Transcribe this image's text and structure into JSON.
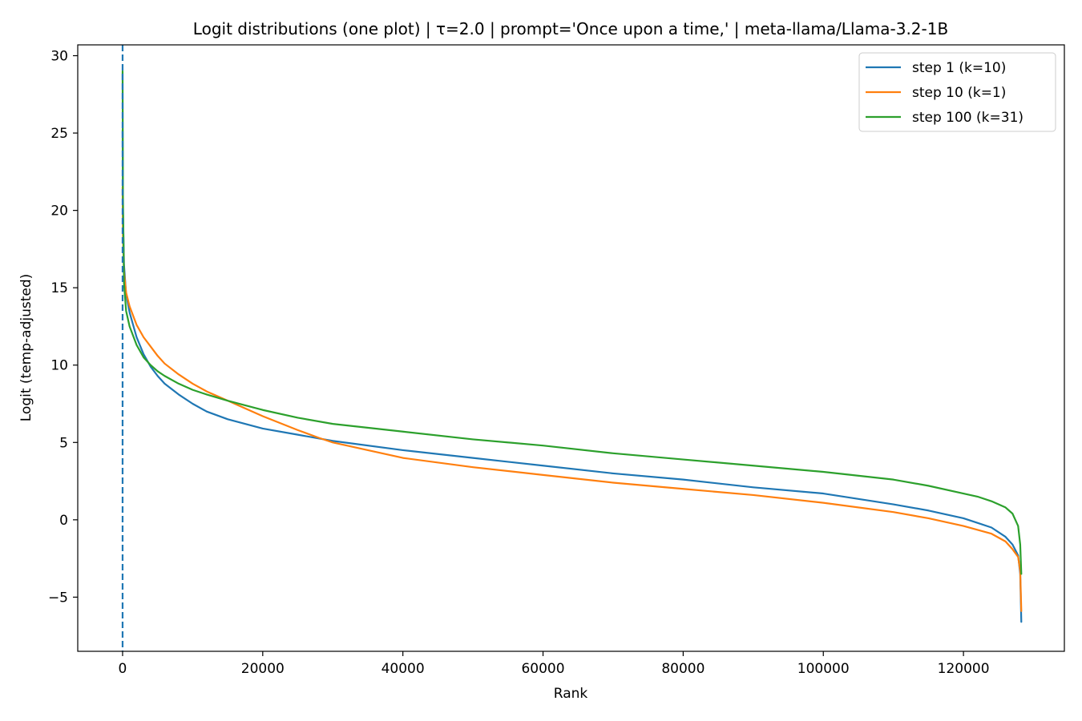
{
  "chart_data": {
    "type": "line",
    "title": "Logit distributions (one plot) | τ=2.0 | prompt='Once upon a time,' | meta-llama/Llama-3.2-1B",
    "xlabel": "Rank",
    "ylabel": "Logit (temp-adjusted)",
    "xlim": [
      -6400,
      134400
    ],
    "ylim": [
      -8.5,
      30.7
    ],
    "xticks": [
      0,
      20000,
      40000,
      60000,
      80000,
      100000,
      120000
    ],
    "yticks": [
      -5,
      0,
      5,
      10,
      15,
      20,
      25,
      30
    ],
    "ytick_labels": [
      "−5",
      "0",
      "5",
      "10",
      "15",
      "20",
      "25",
      "30"
    ],
    "grid": false,
    "legend_position": "top-right",
    "vline": {
      "x": 0,
      "style": "dashed",
      "color": "#1f77b4"
    },
    "series": [
      {
        "name": "step 1 (k=10)",
        "color": "#1f77b4",
        "x": [
          0,
          50,
          200,
          500,
          1000,
          2000,
          3000,
          4000,
          5000,
          6000,
          8000,
          10000,
          12000,
          15000,
          20000,
          25000,
          30000,
          40000,
          50000,
          60000,
          70000,
          80000,
          90000,
          100000,
          110000,
          115000,
          120000,
          122000,
          124000,
          126000,
          127000,
          127800,
          128100,
          128256
        ],
        "values": [
          25.2,
          20.0,
          16.5,
          14.6,
          13.4,
          11.8,
          10.7,
          9.9,
          9.3,
          8.8,
          8.1,
          7.5,
          7.0,
          6.5,
          5.9,
          5.5,
          5.1,
          4.5,
          4.0,
          3.5,
          3.0,
          2.6,
          2.1,
          1.7,
          1.0,
          0.6,
          0.1,
          -0.2,
          -0.5,
          -1.1,
          -1.6,
          -2.3,
          -3.5,
          -6.6
        ]
      },
      {
        "name": "step 10 (k=1)",
        "color": "#ff7f0e",
        "x": [
          0,
          50,
          200,
          500,
          1000,
          2000,
          3000,
          4000,
          5000,
          6000,
          8000,
          10000,
          12000,
          15000,
          20000,
          25000,
          28000,
          30000,
          40000,
          50000,
          60000,
          70000,
          80000,
          90000,
          100000,
          110000,
          115000,
          120000,
          124000,
          126000,
          127000,
          127800,
          128100,
          128256
        ],
        "values": [
          21.5,
          18.5,
          16.0,
          14.7,
          13.8,
          12.6,
          11.8,
          11.2,
          10.6,
          10.1,
          9.4,
          8.8,
          8.3,
          7.7,
          6.7,
          5.8,
          5.3,
          5.0,
          4.0,
          3.4,
          2.9,
          2.4,
          2.0,
          1.6,
          1.1,
          0.5,
          0.1,
          -0.4,
          -0.9,
          -1.4,
          -1.9,
          -2.4,
          -3.3,
          -5.9
        ]
      },
      {
        "name": "step 100 (k=31)",
        "color": "#2ca02c",
        "x": [
          0,
          50,
          200,
          500,
          1000,
          2000,
          3000,
          4000,
          5000,
          6000,
          8000,
          10000,
          12000,
          15000,
          20000,
          25000,
          30000,
          40000,
          50000,
          60000,
          70000,
          80000,
          90000,
          100000,
          110000,
          115000,
          120000,
          122000,
          124000,
          126000,
          127000,
          127800,
          128100,
          128256
        ],
        "values": [
          29.0,
          21.0,
          15.3,
          13.5,
          12.5,
          11.3,
          10.5,
          10.0,
          9.6,
          9.3,
          8.8,
          8.4,
          8.1,
          7.7,
          7.1,
          6.6,
          6.2,
          5.7,
          5.2,
          4.8,
          4.3,
          3.9,
          3.5,
          3.1,
          2.6,
          2.2,
          1.7,
          1.5,
          1.2,
          0.8,
          0.4,
          -0.4,
          -1.6,
          -3.5
        ]
      }
    ]
  }
}
